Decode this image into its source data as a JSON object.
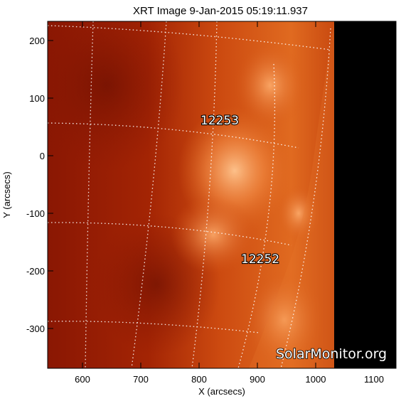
{
  "title": "XRT Image  9-Jan-2015 05:19:11.937",
  "xlabel": "X (arcsecs)",
  "ylabel": "Y (arcsecs)",
  "x_ticks": [
    "600",
    "700",
    "800",
    "900",
    "1000",
    "1100"
  ],
  "y_ticks": [
    "200",
    "100",
    "0",
    "-100",
    "-200",
    "-300"
  ],
  "regions": [
    {
      "label": "12253"
    },
    {
      "label": "12252"
    }
  ],
  "watermark": "SolarMonitor.org",
  "colors": {
    "background": "#ffffff",
    "sky": "#000000",
    "disk_base": "#a02004",
    "disk_bright": "#ffb37a",
    "grid": "#ffffff"
  }
}
